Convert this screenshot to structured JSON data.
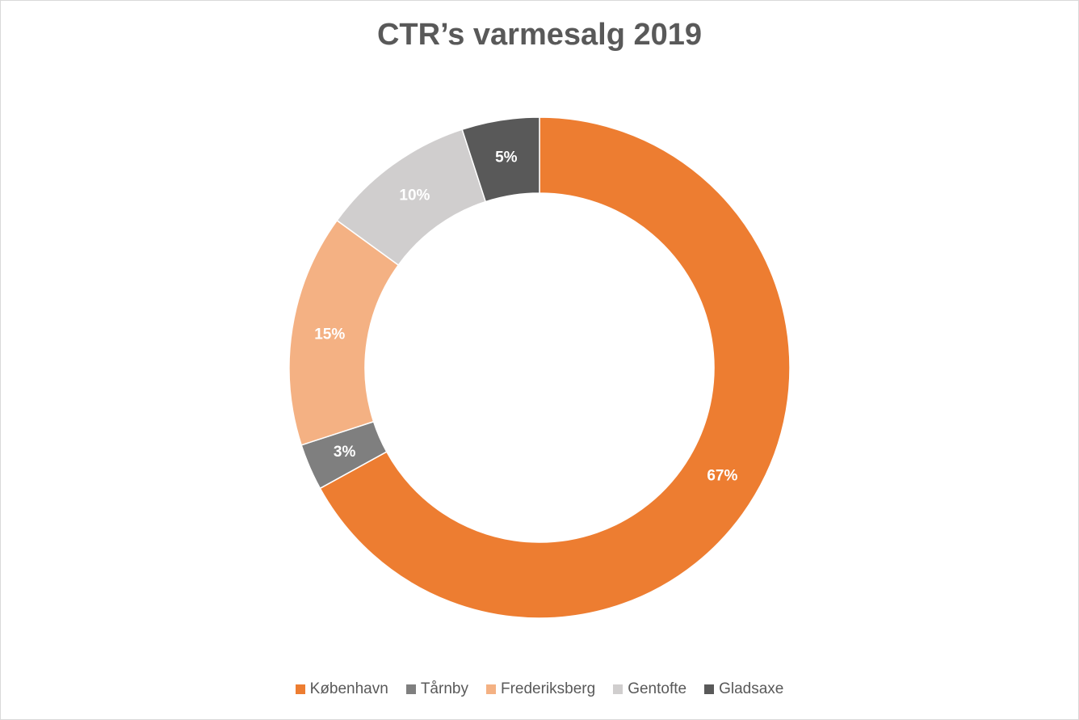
{
  "chart_data": {
    "type": "pie",
    "style": "donut",
    "title": "CTR’s varmesalg 2019",
    "categories": [
      "København",
      "Tårnby",
      "Frederiksberg",
      "Gentofte",
      "Gladsaxe"
    ],
    "values": [
      67,
      3,
      15,
      10,
      5
    ],
    "labels": [
      "67%",
      "3%",
      "15%",
      "10%",
      "5%"
    ],
    "colors": [
      "#ED7D31",
      "#7F7F7F",
      "#F4B183",
      "#D0CECE",
      "#595959"
    ],
    "legend": "bottom"
  }
}
